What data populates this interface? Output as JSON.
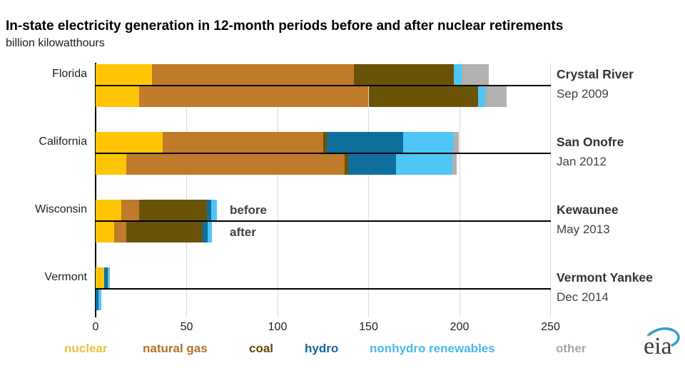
{
  "title": "In-state electricity generation in 12-month periods before and after nuclear retirements",
  "subtitle": "billion kilowatthours",
  "chart_data": {
    "type": "bar",
    "orientation": "horizontal",
    "stacked": true,
    "unit": "billion kilowatthours",
    "xlim": [
      0,
      250
    ],
    "x_ticks": [
      0,
      50,
      100,
      150,
      200,
      250
    ],
    "grid": "vertical-light-gray",
    "legend_position": "bottom",
    "series": [
      {
        "key": "nuclear",
        "label": "nuclear",
        "color": "#ffc505",
        "legend_color": "#eec043"
      },
      {
        "key": "natural_gas",
        "label": "natural gas",
        "color": "#bf7b29",
        "legend_color": "#b4702a"
      },
      {
        "key": "coal",
        "label": "coal",
        "color": "#6a5306",
        "legend_color": "#5f4b06"
      },
      {
        "key": "hydro",
        "label": "hydro",
        "color": "#0e6f9e",
        "legend_color": "#11689b"
      },
      {
        "key": "nonhydro_renewables",
        "label": "nonhydro renewables",
        "color": "#4fc6f5",
        "legend_color": "#47b9ed"
      },
      {
        "key": "other",
        "label": "other",
        "color": "#b1b1b1",
        "legend_color": "#a6a6a6"
      }
    ],
    "groups": [
      {
        "state": "Florida",
        "plant": "Crystal River",
        "retire_date": "Sep 2009",
        "before": [
          31,
          111,
          55,
          0,
          4,
          15
        ],
        "after": [
          24,
          126,
          60,
          0,
          4,
          12
        ]
      },
      {
        "state": "California",
        "plant": "San Onofre",
        "retire_date": "Jan 2012",
        "before": [
          37,
          88,
          2,
          42,
          28,
          2.5
        ],
        "after": [
          17,
          120,
          2,
          26,
          31,
          2.5
        ]
      },
      {
        "state": "Wisconsin",
        "plant": "Kewaunee",
        "retire_date": "May 2013",
        "before": [
          14,
          10,
          37,
          2.5,
          3,
          0
        ],
        "after": [
          10,
          7,
          42,
          2.5,
          2.5,
          0
        ]
      },
      {
        "state": "Vermont",
        "plant": "Vermont Yankee",
        "retire_date": "Dec 2014",
        "before": [
          4.7,
          0,
          0,
          2,
          0.8,
          0.3
        ],
        "after": [
          0,
          0,
          0,
          1.6,
          1.4,
          0
        ]
      }
    ],
    "row_labels": {
      "before": "before",
      "after": "after"
    },
    "row_labels_shown_on_group": "Wisconsin"
  },
  "legend_x_positions": [
    90,
    200,
    349,
    427,
    518,
    779
  ],
  "logo": {
    "text": "eia"
  }
}
